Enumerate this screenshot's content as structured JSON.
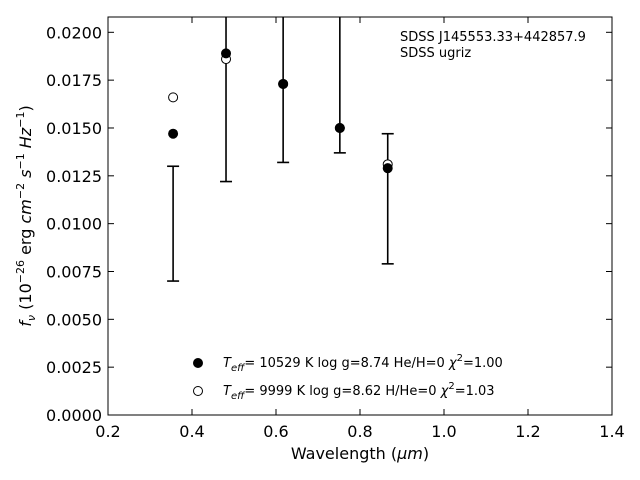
{
  "chart_data": {
    "type": "scatter",
    "xlabel": {
      "main": "Wavelength (",
      "unit": "μm",
      "close": ")"
    },
    "ylabel": {
      "f": "f",
      "nu": "ν",
      "open": " (10",
      "exp1": "−26",
      "erg": " erg ",
      "cm": "cm",
      "exp2": "−2",
      "s": " s",
      "exp3": "−1",
      "hz": " Hz",
      "exp4": "−1",
      "close": ")"
    },
    "xlim": [
      0.2,
      1.4
    ],
    "ylim": [
      0.0,
      0.0208
    ],
    "x_ticks": [
      0.2,
      0.4,
      0.6,
      0.8,
      1.0,
      1.2,
      1.4
    ],
    "x_tick_labels": [
      "0.2",
      "0.4",
      "0.6",
      "0.8",
      "1.0",
      "1.2",
      "1.4"
    ],
    "y_ticks": [
      0.0,
      0.0025,
      0.005,
      0.0075,
      0.01,
      0.0125,
      0.015,
      0.0175,
      0.02
    ],
    "y_tick_labels": [
      "0.0000",
      "0.0025",
      "0.0050",
      "0.0075",
      "0.0100",
      "0.0125",
      "0.0150",
      "0.0175",
      "0.0200"
    ],
    "grid": false,
    "annotation": [
      "SDSS J145553.33+442857.9",
      "SDSS ugriz"
    ],
    "observed": {
      "x": [
        0.355,
        0.481,
        0.617,
        0.752,
        0.866
      ],
      "y_err_low": [
        0.007,
        0.0122,
        0.0132,
        0.0137,
        0.0079
      ],
      "y_err_high": [
        0.013,
        0.029,
        0.029,
        0.029,
        0.0147
      ]
    },
    "series": [
      {
        "marker": "filled",
        "x": [
          0.355,
          0.481,
          0.617,
          0.752,
          0.866
        ],
        "y": [
          0.0147,
          0.0189,
          0.0173,
          0.015,
          0.0129
        ],
        "legend": {
          "t": "T",
          "sub": "eff",
          "body": "= 10529 K  log g=8.74  He/H=0  ",
          "chi": "χ",
          "sup": "2",
          "tail": "=1.00"
        }
      },
      {
        "marker": "open",
        "x": [
          0.355,
          0.481,
          0.617,
          0.752,
          0.866
        ],
        "y": [
          0.0166,
          0.0186,
          0.0173,
          0.015,
          0.0131
        ],
        "legend": {
          "t": "T",
          "sub": "eff",
          "body": "=  9999 K  log g=8.62  H/He=0  ",
          "chi": "χ",
          "sup": "2",
          "tail": "=1.03"
        }
      }
    ],
    "legend_position": "bottom-center"
  }
}
